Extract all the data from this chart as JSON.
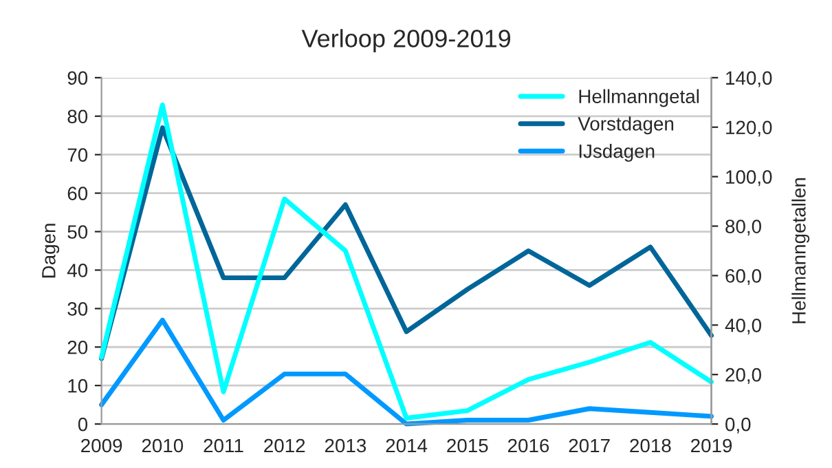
{
  "chart_data": {
    "type": "line",
    "title": "Verloop 2009-2019",
    "ylabel": "Dagen",
    "y2label": "Hellmanngetallen",
    "x": [
      2009,
      2010,
      2011,
      2012,
      2013,
      2014,
      2015,
      2016,
      2017,
      2018,
      2019
    ],
    "series": [
      {
        "name": "Hellmanngetal",
        "color": "#00ffff",
        "axis": "y2",
        "values": [
          27,
          129,
          13,
          91,
          70,
          2.4,
          5.4,
          18,
          25,
          33,
          17
        ]
      },
      {
        "name": "Vorstdagen",
        "color": "#006699",
        "values": [
          17,
          77,
          38,
          38,
          57,
          24,
          35,
          45,
          36,
          46,
          23
        ]
      },
      {
        "name": "IJsdagen",
        "color": "#0099ff",
        "values": [
          5,
          27,
          1,
          13,
          13,
          0,
          1,
          1,
          4,
          3,
          2
        ]
      }
    ],
    "xlim": [
      2009,
      2019
    ],
    "xticks": [
      2009,
      2010,
      2011,
      2012,
      2013,
      2014,
      2015,
      2016,
      2017,
      2018,
      2019
    ],
    "ylim": [
      0,
      90
    ],
    "yticks": [
      0,
      10,
      20,
      30,
      40,
      50,
      60,
      70,
      80,
      90
    ],
    "y2lim": [
      0,
      140
    ],
    "y2ticks": [
      {
        "value": 0,
        "label": "0,0"
      },
      {
        "value": 20,
        "label": "20,0"
      },
      {
        "value": 40,
        "label": "40,0"
      },
      {
        "value": 60,
        "label": "60,0"
      },
      {
        "value": 80,
        "label": "80,0"
      },
      {
        "value": 100,
        "label": "100,0"
      },
      {
        "value": 120,
        "label": "120,0"
      },
      {
        "value": 140,
        "label": "140,0"
      }
    ],
    "grid": "y",
    "legend": "top right",
    "marker": "none",
    "line_style": "solid"
  }
}
